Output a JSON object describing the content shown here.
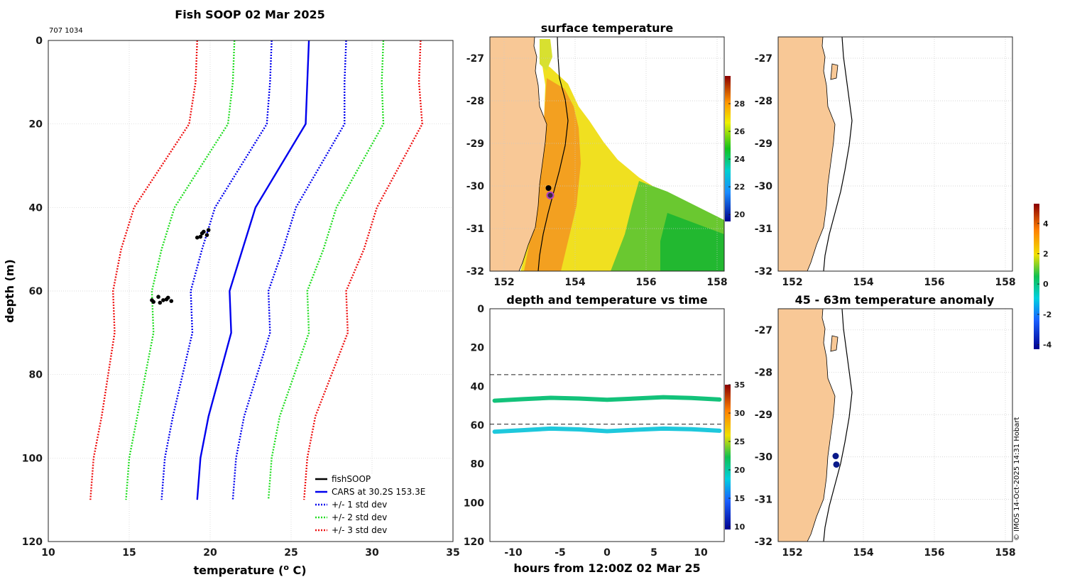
{
  "colors": {
    "land": "#f8c896",
    "obs": "#000000",
    "cars": "#0000ee",
    "std1": "#0000ee",
    "std2": "#22dd22",
    "std3": "#ee1111",
    "t_shallow": "#13c27a",
    "t_deep": "#1ec8dc"
  },
  "profile": {
    "title": "Fish SOOP 02 Mar 2025",
    "id_label": "707 1034",
    "xlabel": "temperature (",
    "xlabel_sup": "o",
    "xlabel_unit": " C)",
    "ylabel": "depth (m)",
    "legend": [
      "fishSOOP",
      "CARS at 30.2S 153.3E",
      "+/- 1 std dev",
      "+/- 2 std dev",
      "+/- 3 std dev"
    ]
  },
  "sst": {
    "title": "surface temperature"
  },
  "time_panel": {
    "title": "depth and temperature vs time",
    "xlabel": "hours from 12:00Z 02 Mar 25"
  },
  "anom": {
    "title": "45 - 63m temperature anomaly"
  },
  "credit": "© IMOS 14-Oct-2025 14:31 Hobart",
  "chart_data": [
    {
      "type": "line",
      "name": "temperature-depth profile",
      "title": "Fish SOOP 02 Mar 2025",
      "xlabel": "temperature (o C)",
      "ylabel": "depth (m)",
      "xlim": [
        10,
        35
      ],
      "ylim": [
        0,
        120
      ],
      "xticks": [
        10,
        15,
        20,
        25,
        30,
        35
      ],
      "yticks": [
        0,
        20,
        40,
        60,
        80,
        100,
        120
      ],
      "depth": [
        0,
        10,
        20,
        40,
        50,
        60,
        70,
        80,
        90,
        100,
        110
      ],
      "cars_mean": [
        26.1,
        26.0,
        25.9,
        22.8,
        22.0,
        21.2,
        21.3,
        20.6,
        19.9,
        19.4,
        19.2
      ],
      "std_dev": [
        2.3,
        2.3,
        2.4,
        2.5,
        2.5,
        2.4,
        2.4,
        2.3,
        2.2,
        2.2,
        2.2
      ],
      "observations": [
        {
          "temperature": 19.6,
          "depth": 45.8
        },
        {
          "temperature": 19.8,
          "depth": 46.6
        },
        {
          "temperature": 19.4,
          "depth": 47.0
        },
        {
          "temperature": 19.9,
          "depth": 45.4
        },
        {
          "temperature": 19.5,
          "depth": 46.2
        },
        {
          "temperature": 19.2,
          "depth": 47.2
        },
        {
          "temperature": 16.5,
          "depth": 62.6
        },
        {
          "temperature": 16.8,
          "depth": 61.4
        },
        {
          "temperature": 17.1,
          "depth": 62.2
        },
        {
          "temperature": 17.4,
          "depth": 61.6
        },
        {
          "temperature": 17.6,
          "depth": 62.4
        },
        {
          "temperature": 16.9,
          "depth": 62.8
        },
        {
          "temperature": 17.3,
          "depth": 62.0
        },
        {
          "temperature": 16.4,
          "depth": 62.2
        }
      ],
      "legend": [
        "fishSOOP",
        "CARS at 30.2S 153.3E",
        "+/- 1 std dev",
        "+/- 2 std dev",
        "+/- 3 std dev"
      ],
      "legend_position": "bottom-right"
    },
    {
      "type": "heatmap",
      "name": "surface temperature map",
      "title": "surface temperature",
      "xlim": [
        151.6,
        158.2
      ],
      "ylim": [
        -32,
        -26.5
      ],
      "xticks": [
        152,
        154,
        156,
        158
      ],
      "yticks": [
        -27,
        -28,
        -29,
        -30,
        -31,
        -32
      ],
      "colorbar": {
        "min": 19.5,
        "max": 30,
        "ticks": [
          20,
          22,
          24,
          26,
          28
        ]
      },
      "markers": [
        {
          "lon": 153.25,
          "lat": -30.05,
          "color": "#000000"
        },
        {
          "lon": 153.3,
          "lat": -30.22,
          "color": "#b040c0"
        }
      ]
    },
    {
      "type": "scatter",
      "name": "depth and temperature vs time",
      "title": "depth and temperature vs time",
      "xlabel": "hours from 12:00Z 02 Mar 25",
      "xlim": [
        -12.5,
        12.5
      ],
      "ylim": [
        0,
        120
      ],
      "xticks": [
        -10,
        -5,
        0,
        5,
        10
      ],
      "yticks": [
        0,
        20,
        40,
        60,
        80,
        100,
        120
      ],
      "reference_depths": [
        34,
        59.5
      ],
      "series": [
        {
          "name": "shallow",
          "hours": [
            -12,
            -9,
            -6,
            -3,
            0,
            3,
            6,
            9,
            12
          ],
          "depth": [
            47.4,
            46.6,
            45.9,
            46.3,
            46.9,
            46.3,
            45.6,
            46.0,
            46.8
          ],
          "temperature": 20.0
        },
        {
          "name": "deep",
          "hours": [
            -12,
            -9,
            -6,
            -3,
            0,
            3,
            6,
            9,
            12
          ],
          "depth": [
            63.4,
            62.6,
            61.8,
            62.2,
            63.1,
            62.4,
            61.8,
            62.1,
            62.9
          ],
          "temperature": 17.0
        }
      ],
      "colorbar": {
        "min": 9.5,
        "max": 35,
        "ticks": [
          10,
          15,
          20,
          25,
          30,
          35
        ]
      }
    },
    {
      "type": "scatter",
      "name": "45 - 63m temperature anomaly map",
      "title": "45 - 63m temperature anomaly",
      "xlim": [
        151.6,
        158.2
      ],
      "ylim": [
        -32,
        -26.5
      ],
      "xticks": [
        152,
        154,
        156,
        158
      ],
      "yticks": [
        -27,
        -28,
        -29,
        -30,
        -31,
        -32
      ],
      "markers": [
        {
          "lon": 153.22,
          "lat": -29.98,
          "anomaly": -3.6
        },
        {
          "lon": 153.24,
          "lat": -30.18,
          "anomaly": -3.8
        }
      ],
      "colorbar": {
        "min": -4.3,
        "max": 5.3,
        "ticks": [
          -4,
          -2,
          0,
          2,
          4
        ]
      }
    },
    {
      "type": "scatter",
      "name": "upper-right map (empty)",
      "xlim": [
        151.6,
        158.2
      ],
      "ylim": [
        -32,
        -26.5
      ],
      "xticks": [
        152,
        154,
        156,
        158
      ],
      "yticks": [
        -27,
        -28,
        -29,
        -30,
        -31,
        -32
      ]
    }
  ]
}
